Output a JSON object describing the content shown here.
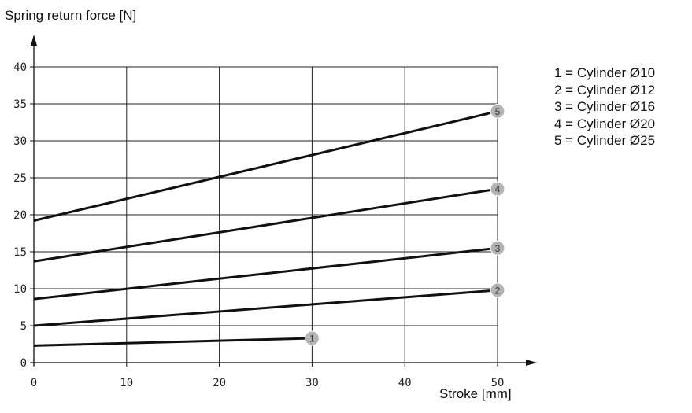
{
  "chart_data": {
    "type": "line",
    "title": "",
    "xlabel": "Stroke [mm]",
    "ylabel": "Spring return force [N]",
    "xlim": [
      0,
      50
    ],
    "ylim": [
      0,
      40
    ],
    "xticks": [
      "0",
      "10",
      "20",
      "30",
      "40",
      "50"
    ],
    "yticks": [
      "0",
      "5",
      "10",
      "15",
      "20",
      "25",
      "30",
      "35",
      "40"
    ],
    "grid": true,
    "legend_placement": "right",
    "series": [
      {
        "marker": "1",
        "x": [
          0,
          30
        ],
        "y": [
          2.3,
          3.3
        ]
      },
      {
        "marker": "2",
        "x": [
          0,
          50
        ],
        "y": [
          5.0,
          9.8
        ]
      },
      {
        "marker": "3",
        "x": [
          0,
          50
        ],
        "y": [
          8.6,
          15.5
        ]
      },
      {
        "marker": "4",
        "x": [
          0,
          50
        ],
        "y": [
          13.7,
          23.5
        ]
      },
      {
        "marker": "5",
        "x": [
          0,
          50
        ],
        "y": [
          19.2,
          34.0
        ]
      }
    ],
    "legend": [
      "1 = Cylinder Ø10",
      "2 = Cylinder Ø12",
      "3 = Cylinder Ø16",
      "4 = Cylinder Ø20",
      "5 = Cylinder Ø25"
    ],
    "colors": {
      "line": "#111111",
      "marker_fill": "#b4b4b4",
      "marker_text": "#333333",
      "grid": "#222222"
    }
  }
}
